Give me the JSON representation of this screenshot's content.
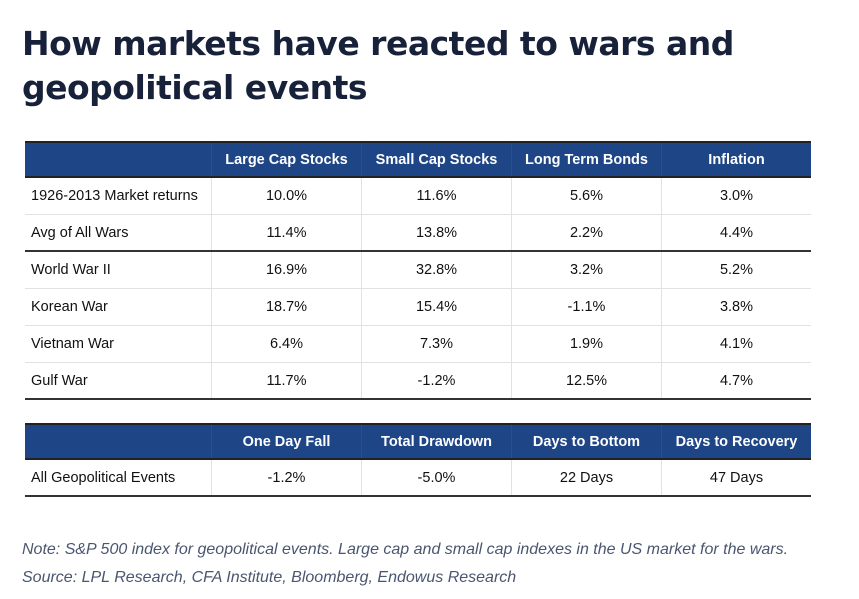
{
  "title": "How markets have reacted to wars and geopolitical events",
  "table1": {
    "headers": [
      "",
      "Large Cap Stocks",
      "Small Cap Stocks",
      "Long Term Bonds",
      "Inflation"
    ],
    "rows": [
      [
        "1926-2013 Market returns",
        "10.0%",
        "11.6%",
        "5.6%",
        "3.0%"
      ],
      [
        "Avg of All Wars",
        "11.4%",
        "13.8%",
        "2.2%",
        "4.4%"
      ],
      [
        "World War II",
        "16.9%",
        "32.8%",
        "3.2%",
        "5.2%"
      ],
      [
        "Korean War",
        "18.7%",
        "15.4%",
        "-1.1%",
        "3.8%"
      ],
      [
        "Vietnam War",
        "6.4%",
        "7.3%",
        "1.9%",
        "4.1%"
      ],
      [
        "Gulf War",
        "11.7%",
        "-1.2%",
        "12.5%",
        "4.7%"
      ]
    ]
  },
  "table2": {
    "headers": [
      "",
      "One Day Fall",
      "Total Drawdown",
      "Days to Bottom",
      "Days to Recovery"
    ],
    "rows": [
      [
        "All Geopolitical Events",
        "-1.2%",
        "-5.0%",
        "22 Days",
        "47 Days"
      ]
    ]
  },
  "note": "Note: S&P 500 index for geopolitical events. Large cap and small cap indexes in the US market for the wars. Source: LPL Research, CFA Institute, Bloomberg, Endowus Research",
  "colors": {
    "header_bg": "#1e4585",
    "title": "#17213a",
    "note": "#4a5670"
  }
}
